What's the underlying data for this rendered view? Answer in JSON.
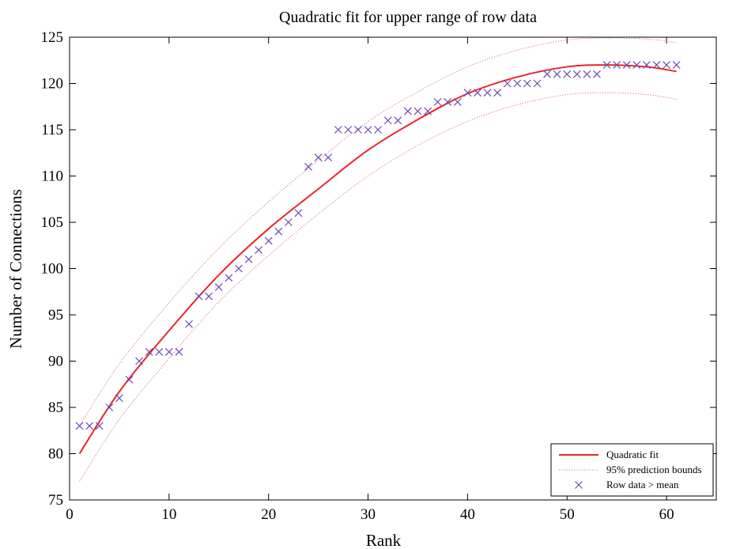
{
  "chart_data": {
    "type": "scatter",
    "title": "Quadratic fit for upper range of row data",
    "xlabel": "Rank",
    "ylabel": "Number of Connections",
    "xlim": [
      0,
      65
    ],
    "ylim": [
      75,
      125
    ],
    "xticks": [
      0,
      10,
      20,
      30,
      40,
      50,
      60
    ],
    "yticks": [
      75,
      80,
      85,
      90,
      95,
      100,
      105,
      110,
      115,
      120,
      125
    ],
    "grid": false,
    "legend_position": "bottom-right",
    "colors": {
      "fit": "#e8262a",
      "bounds": "#e06b8e",
      "markers": "#6a4bb3"
    },
    "series": [
      {
        "name": "Quadratic fit",
        "style": "solid-line",
        "x": [
          1,
          5,
          10,
          15,
          20,
          25,
          30,
          35,
          40,
          45,
          50,
          54,
          58,
          61
        ],
        "y": [
          80.0,
          86.7,
          93.3,
          99.3,
          104.3,
          108.6,
          112.8,
          116.1,
          118.9,
          120.7,
          121.8,
          122.0,
          121.8,
          121.3
        ]
      },
      {
        "name": "95% prediction bounds",
        "style": "dotted-line",
        "x": [
          1,
          5,
          10,
          15,
          20,
          25,
          30,
          35,
          40,
          45,
          50,
          54,
          58,
          61
        ],
        "y": [
          83.0,
          89.7,
          96.3,
          102.2,
          107.2,
          111.7,
          115.9,
          119.1,
          121.8,
          123.6,
          124.7,
          124.9,
          124.8,
          124.4
        ]
      },
      {
        "name": "",
        "style": "dotted-line",
        "x": [
          1,
          5,
          10,
          15,
          20,
          25,
          30,
          35,
          40,
          45,
          50,
          54,
          58,
          61
        ],
        "y": [
          77.0,
          83.7,
          90.3,
          96.4,
          101.4,
          105.9,
          110.0,
          113.3,
          115.9,
          117.7,
          118.8,
          119.0,
          118.8,
          118.3
        ]
      },
      {
        "name": "Row data > mean",
        "style": "x-marker",
        "x": [
          1,
          2,
          3,
          4,
          5,
          6,
          7,
          8,
          9,
          10,
          11,
          12,
          13,
          14,
          15,
          16,
          17,
          18,
          19,
          20,
          21,
          22,
          23,
          24,
          25,
          26,
          27,
          28,
          29,
          30,
          31,
          32,
          33,
          34,
          35,
          36,
          37,
          38,
          39,
          40,
          41,
          42,
          43,
          44,
          45,
          46,
          47,
          48,
          49,
          50,
          51,
          52,
          53,
          54,
          55,
          56,
          57,
          58,
          59,
          60,
          61
        ],
        "y": [
          83,
          83,
          83,
          85,
          86,
          88,
          90,
          91,
          91,
          91,
          91,
          94,
          97,
          97,
          98,
          99,
          100,
          101,
          102,
          103,
          104,
          105,
          106,
          111,
          112,
          112,
          115,
          115,
          115,
          115,
          115,
          116,
          116,
          117,
          117,
          117,
          118,
          118,
          118,
          119,
          119,
          119,
          119,
          120,
          120,
          120,
          120,
          121,
          121,
          121,
          121,
          121,
          121,
          122,
          122,
          122,
          122,
          122,
          122,
          122,
          122
        ]
      }
    ]
  }
}
